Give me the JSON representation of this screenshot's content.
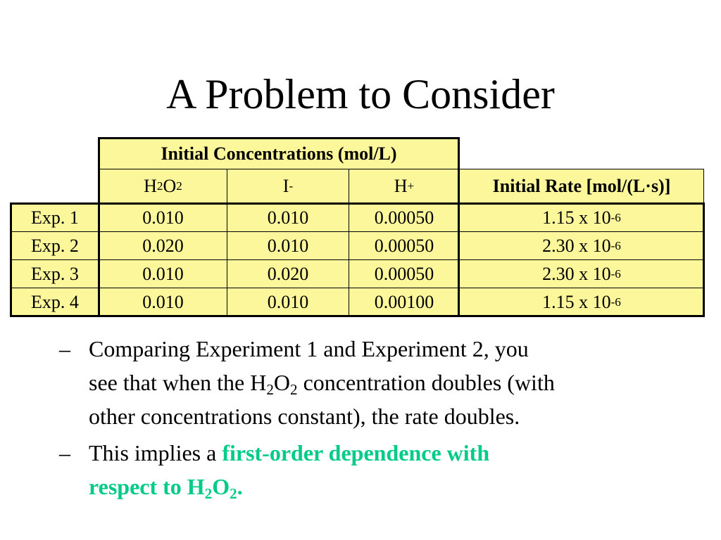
{
  "slide": {
    "title": "A Problem to Consider"
  },
  "table": {
    "group_header": "Initial Concentrations (mol/L)",
    "col_h2o2": {
      "base1": "H",
      "sub1": "2",
      "base2": "O",
      "sub2": "2"
    },
    "col_i": {
      "base": "I",
      "sup": "-"
    },
    "col_h": {
      "base": "H",
      "sup": "+"
    },
    "rate_header": {
      "part1": "Initial Rate [mol/(L",
      "dot": "·",
      "part2": "s)]"
    },
    "rows": [
      {
        "label": "Exp. 1",
        "h2o2": "0.010",
        "i": "0.010",
        "h": "0.00050",
        "rate_mantissa": "1.15 x 10",
        "rate_exp": "-6"
      },
      {
        "label": "Exp. 2",
        "h2o2": "0.020",
        "i": "0.010",
        "h": "0.00050",
        "rate_mantissa": "2.30 x 10",
        "rate_exp": "-6"
      },
      {
        "label": "Exp. 3",
        "h2o2": "0.010",
        "i": "0.020",
        "h": "0.00050",
        "rate_mantissa": "2.30 x 10",
        "rate_exp": "-6"
      },
      {
        "label": "Exp. 4",
        "h2o2": "0.010",
        "i": "0.010",
        "h": "0.00100",
        "rate_mantissa": "1.15 x 10",
        "rate_exp": "-6"
      }
    ]
  },
  "bullets": {
    "dash": "–",
    "b1": {
      "line1": "Comparing Experiment 1 and Experiment 2, you",
      "line2a": "see that when the H",
      "sub1": "2",
      "line2b": "O",
      "sub2": "2",
      "line2c": " concentration doubles (with",
      "line3": "other concentrations constant), the rate doubles."
    },
    "b2": {
      "plain": "This implies a ",
      "hl1": "first-order dependence with",
      "hl2": "respect to H",
      "sub1": "2",
      "hl3": "O",
      "sub2": "2",
      "hl4": "."
    }
  },
  "colors": {
    "table_fill": "#fdf79c",
    "highlight": "#00cc88"
  }
}
